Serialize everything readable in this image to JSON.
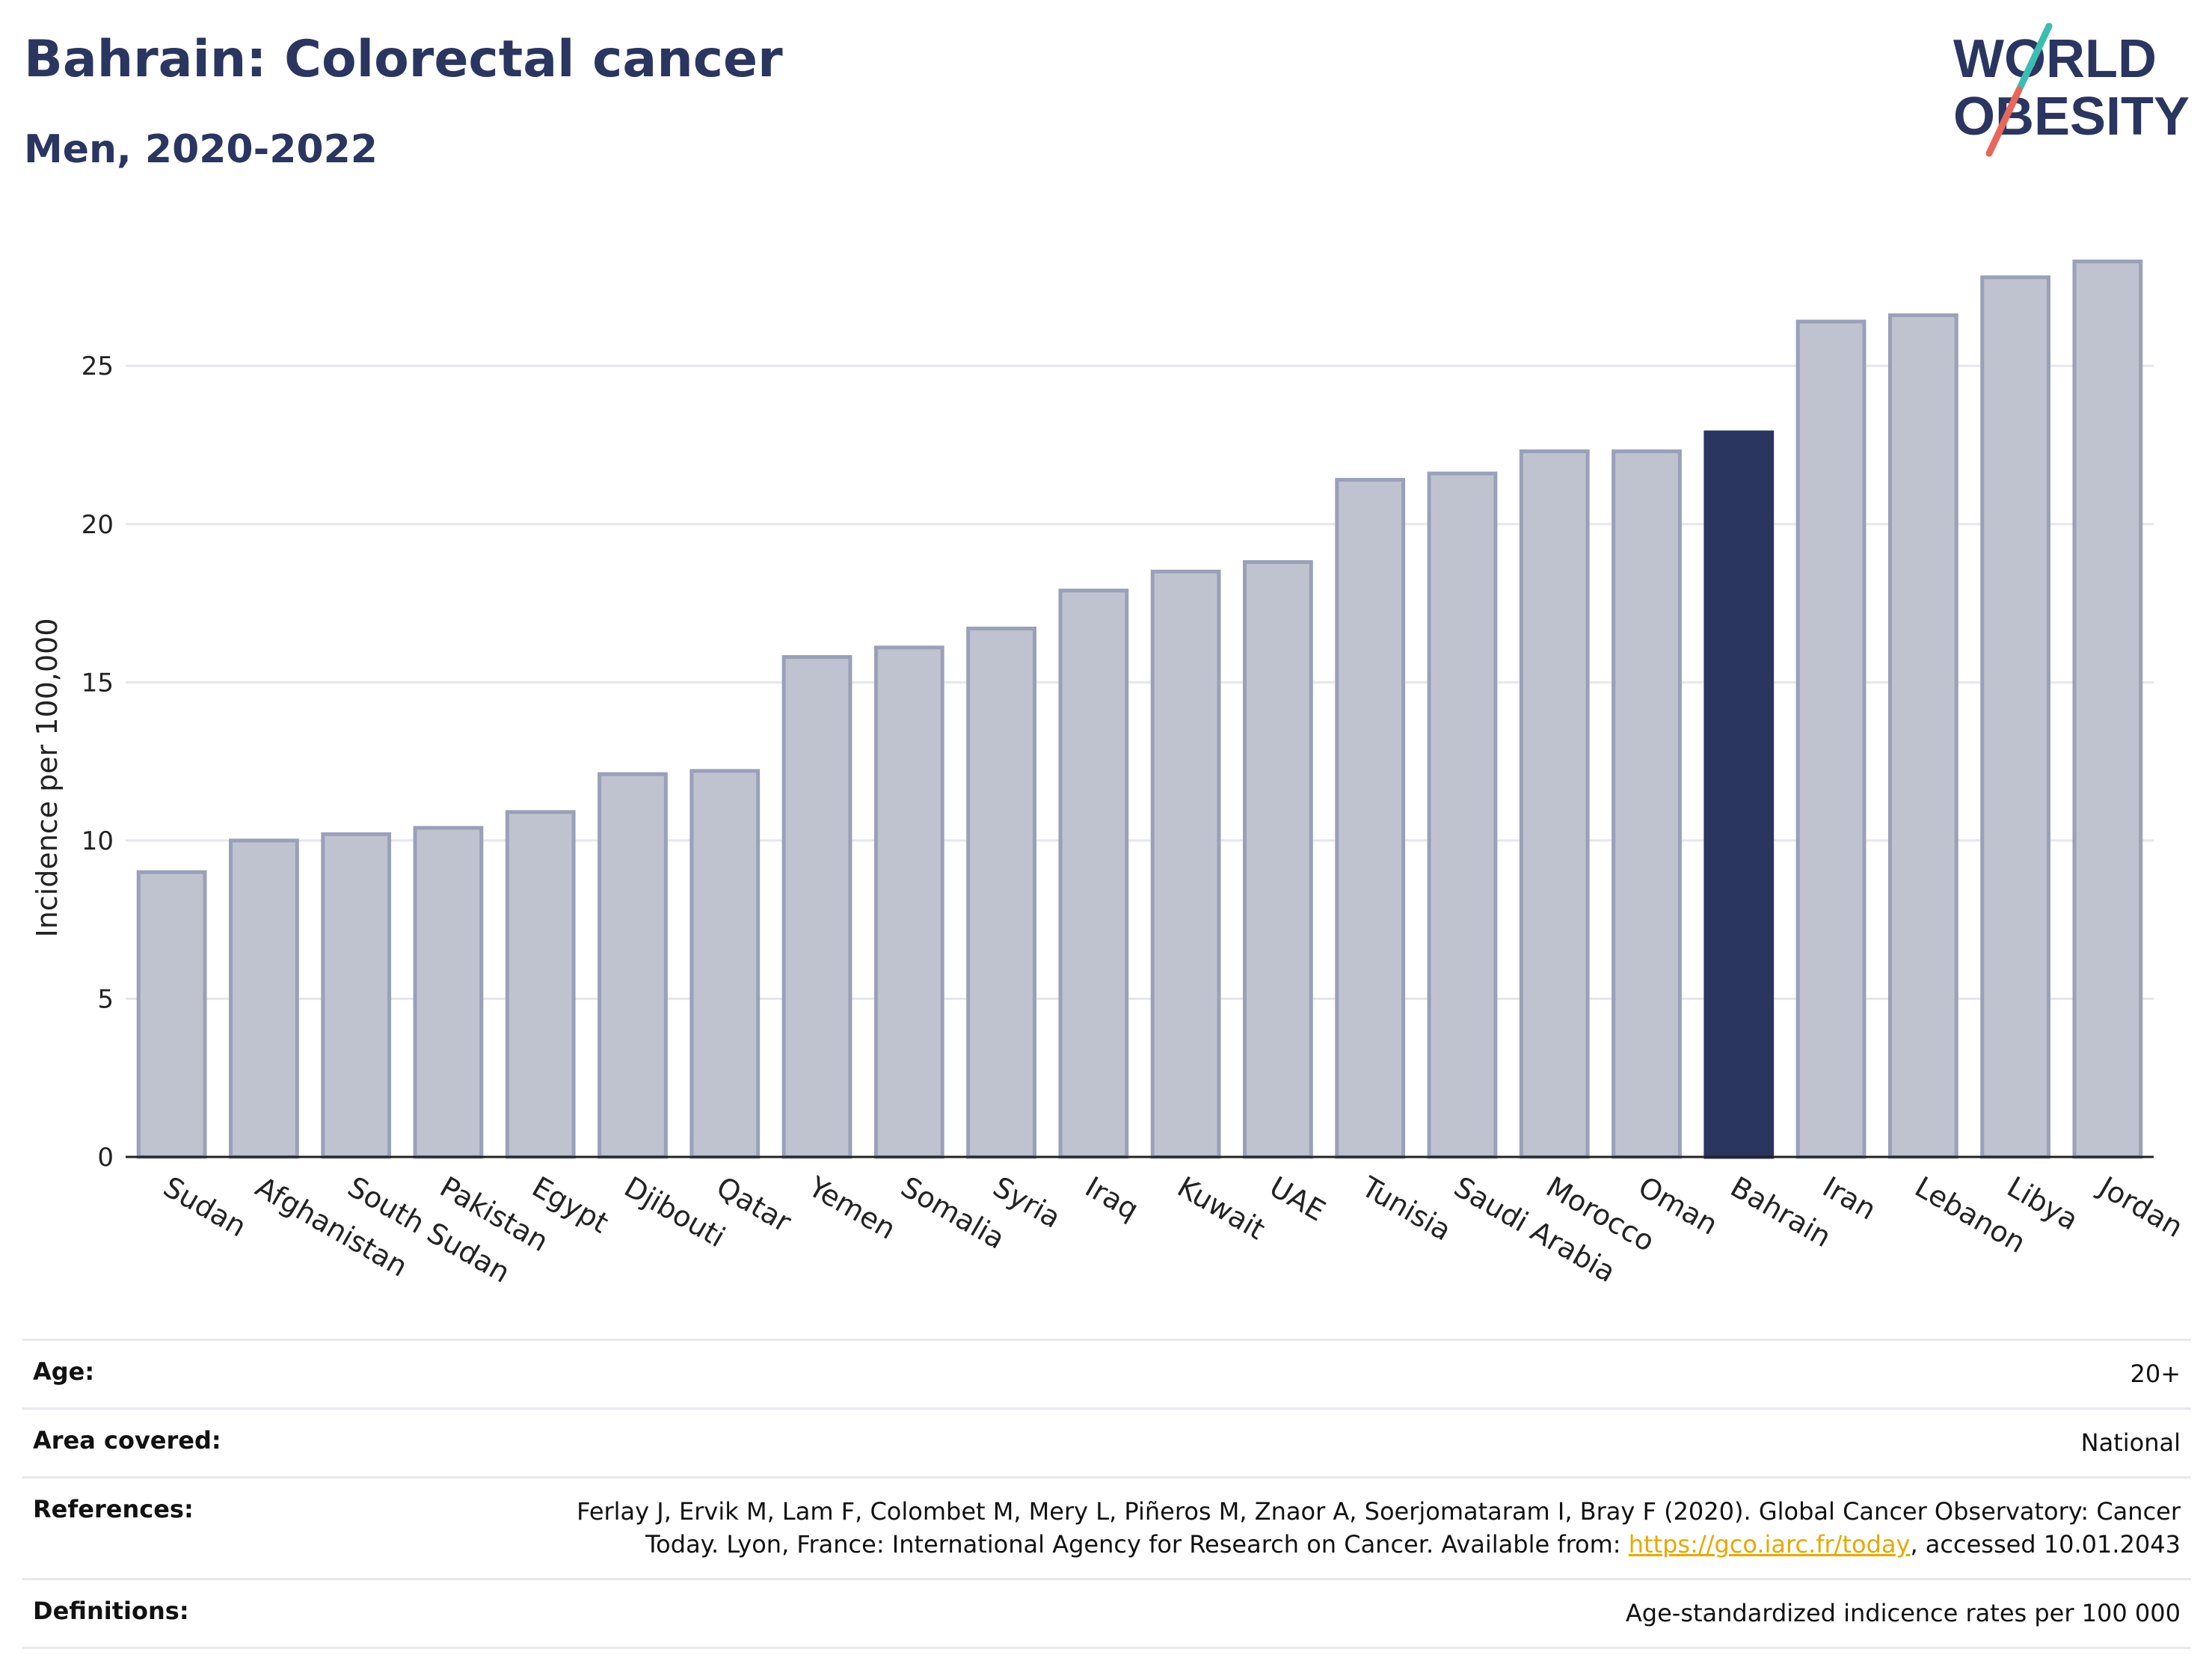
{
  "header": {
    "title": "Bahrain: Colorectal cancer",
    "subtitle": "Men, 2020-2022"
  },
  "logo": {
    "line1": "WORLD",
    "line2": "OBESITY",
    "colors": {
      "text": "#2a3560",
      "slash_top": "#3bbdb0",
      "slash_bottom": "#e8675a"
    }
  },
  "chart_data": {
    "type": "bar",
    "title": "Bahrain: Colorectal cancer",
    "subtitle": "Men, 2020-2022",
    "xlabel": "",
    "ylabel": "Incidence per 100,000",
    "ylim": [
      0,
      29
    ],
    "yticks": [
      0,
      5,
      10,
      15,
      20,
      25
    ],
    "grid": true,
    "highlight": "Bahrain",
    "colors": {
      "bar": "#bfc3d0",
      "bar_edge": "#9aa0b8",
      "highlight": "#2a3560",
      "grid": "#e6e6ee",
      "axis": "#222222"
    },
    "categories": [
      "Sudan",
      "Afghanistan",
      "South Sudan",
      "Pakistan",
      "Egypt",
      "Djibouti",
      "Qatar",
      "Yemen",
      "Somalia",
      "Syria",
      "Iraq",
      "Kuwait",
      "UAE",
      "Tunisia",
      "Saudi Arabia",
      "Morocco",
      "Oman",
      "Bahrain",
      "Iran",
      "Lebanon",
      "Libya",
      "Jordan"
    ],
    "values": [
      9.0,
      10.0,
      10.2,
      10.4,
      10.9,
      12.1,
      12.2,
      15.8,
      16.1,
      16.7,
      17.9,
      18.5,
      18.8,
      21.4,
      21.6,
      22.3,
      22.3,
      22.9,
      26.4,
      26.6,
      27.8,
      28.3
    ]
  },
  "meta": {
    "age_label": "Age:",
    "age_value": "20+",
    "area_label": "Area covered:",
    "area_value": "National",
    "references_label": "References:",
    "references_text1": "Ferlay J, Ervik M, Lam F, Colombet M, Mery L, Piñeros M, Znaor A, Soerjomataram I, Bray F (2020). Global Cancer Observatory: Cancer",
    "references_text2": "Today. Lyon, France: International Agency for Research on Cancer. Available from: ",
    "references_link": "https://gco.iarc.fr/today",
    "references_text3": ", accessed 10.01.2043",
    "definitions_label": "Definitions:",
    "definitions_value": "Age-standardized indicence rates per 100 000"
  }
}
